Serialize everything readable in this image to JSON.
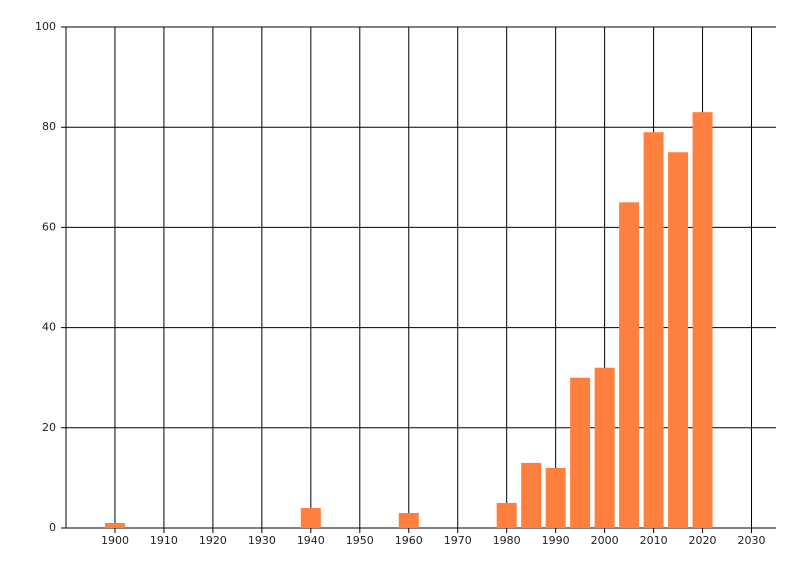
{
  "chart_data": {
    "type": "bar",
    "x": [
      1900,
      1940,
      1960,
      1980,
      1985,
      1990,
      1995,
      2000,
      2005,
      2010,
      2015,
      2020
    ],
    "values": [
      1,
      4,
      3,
      5,
      13,
      12,
      30,
      32,
      65,
      79,
      75,
      83
    ],
    "color": "#ff7f3f",
    "xlim": [
      1890,
      2035
    ],
    "xticks": [
      1900,
      1910,
      1920,
      1930,
      1940,
      1950,
      1960,
      1970,
      1980,
      1990,
      2000,
      2010,
      2020,
      2030
    ],
    "ylim": [
      0,
      100
    ],
    "yticks": [
      0,
      20,
      40,
      60,
      80,
      100
    ],
    "grid": true
  }
}
